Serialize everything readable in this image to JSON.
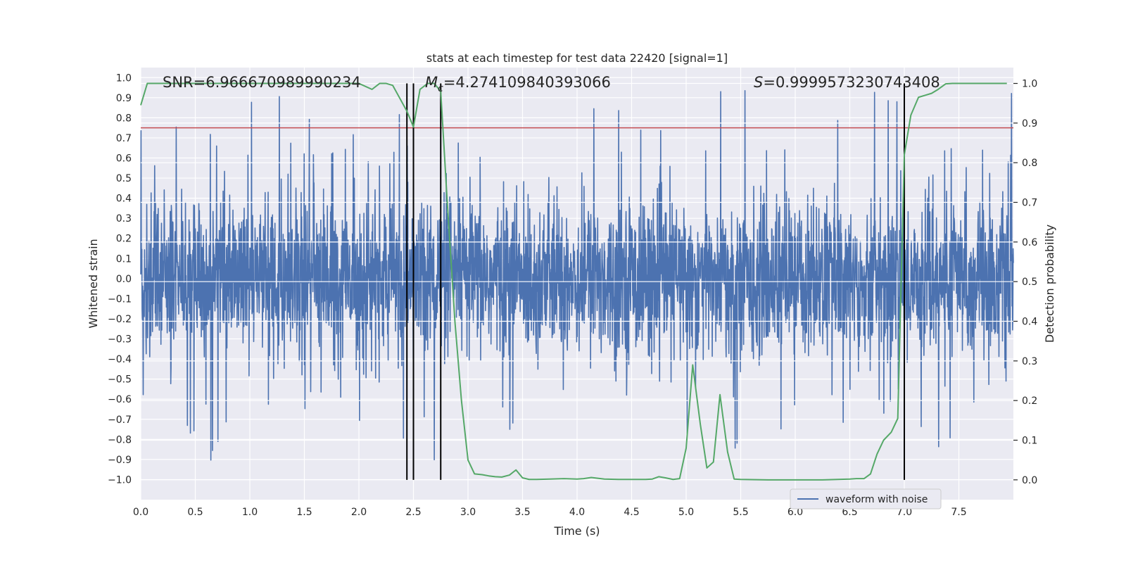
{
  "chart_data": {
    "type": "line",
    "title": "stats at each timestep for test data 22420 [signal=1]",
    "xlabel": "Time (s)",
    "ylabel": "Whitened strain",
    "ylabel_right": "Detection probability",
    "xlim": [
      0.0,
      8.0
    ],
    "ylim": [
      -1.1,
      1.05
    ],
    "ylim_right": [
      -0.05,
      1.04
    ],
    "x_ticks": [
      0.0,
      0.5,
      1.0,
      1.5,
      2.0,
      2.5,
      3.0,
      3.5,
      4.0,
      4.5,
      5.0,
      5.5,
      6.0,
      6.5,
      7.0,
      7.5
    ],
    "x_tick_labels": [
      "0.0",
      "0.5",
      "1.0",
      "1.5",
      "2.0",
      "2.5",
      "3.0",
      "3.5",
      "4.0",
      "4.5",
      "5.0",
      "5.5",
      "6.0",
      "6.5",
      "7.0",
      "7.5"
    ],
    "y_ticks": [
      1.0,
      0.9,
      0.8,
      0.7,
      0.6,
      0.5,
      0.4,
      0.3,
      0.2,
      0.1,
      0.0,
      -0.1,
      -0.2,
      -0.3,
      -0.4,
      -0.5,
      -0.6,
      -0.7,
      -0.8,
      -0.9,
      -1.0
    ],
    "y_tick_labels": [
      "1.0",
      "0.9",
      "0.8",
      "0.7",
      "0.6",
      "0.5",
      "0.4",
      "0.3",
      "0.2",
      "0.1",
      "0.0",
      "−0.1",
      "−0.2",
      "−0.3",
      "−0.4",
      "−0.5",
      "−0.6",
      "−0.7",
      "−0.8",
      "−0.9",
      "−1.0"
    ],
    "y_right_ticks": [
      1.0,
      0.9,
      0.8,
      0.7,
      0.6,
      0.5,
      0.4,
      0.3,
      0.2,
      0.1,
      0.0
    ],
    "y_right_tick_labels": [
      "1.0",
      "0.9",
      "0.8",
      "0.7",
      "0.6",
      "0.5",
      "0.4",
      "0.3",
      "0.2",
      "0.1",
      "0.0"
    ],
    "annotations": {
      "snr": "SNR=6.966670989990234",
      "mc_symbol": "M",
      "mc_subscript": "c",
      "mc_value": "=4.274109840393066",
      "s_symbol": "S",
      "s_value": "=0.9999573230743408"
    },
    "legend": {
      "entries": [
        "waveform with noise"
      ],
      "placement": "lower-right"
    },
    "threshold_line": {
      "y": 0.75,
      "color": "#c44e52"
    },
    "vertical_lines": [
      2.44,
      2.5,
      2.75,
      7.0
    ],
    "waveform": {
      "name": "waveform with noise",
      "color": "#4c72b0",
      "x_range": [
        0.0,
        8.0
      ],
      "sample_count": 3200,
      "typical_amplitude": 0.35,
      "max_amplitude": 0.95
    },
    "detection_probability": {
      "name": "detection probability",
      "color": "#55a868",
      "x": [
        0.0,
        0.06,
        0.13,
        0.25,
        0.5,
        1.0,
        1.5,
        2.0,
        2.12,
        2.19,
        2.25,
        2.31,
        2.38,
        2.44,
        2.5,
        2.56,
        2.63,
        2.69,
        2.75,
        2.81,
        2.88,
        2.94,
        3.0,
        3.06,
        3.13,
        3.19,
        3.25,
        3.31,
        3.38,
        3.44,
        3.5,
        3.56,
        3.63,
        3.75,
        3.88,
        4.0,
        4.06,
        4.13,
        4.19,
        4.25,
        4.38,
        4.5,
        4.63,
        4.69,
        4.75,
        4.81,
        4.88,
        4.94,
        5.0,
        5.06,
        5.13,
        5.19,
        5.25,
        5.31,
        5.38,
        5.44,
        5.5,
        5.75,
        6.0,
        6.25,
        6.5,
        6.56,
        6.63,
        6.69,
        6.75,
        6.81,
        6.88,
        6.94,
        7.0,
        7.06,
        7.13,
        7.19,
        7.25,
        7.31,
        7.38,
        7.44,
        7.5,
        7.75,
        7.94
      ],
      "y": [
        0.945,
        1.0,
        1.0,
        1.0,
        1.0,
        1.0,
        1.0,
        1.0,
        0.985,
        1.0,
        1.0,
        0.995,
        0.96,
        0.93,
        0.89,
        0.985,
        1.0,
        1.0,
        0.98,
        0.7,
        0.4,
        0.2,
        0.05,
        0.015,
        0.013,
        0.01,
        0.008,
        0.007,
        0.012,
        0.025,
        0.005,
        0.001,
        0.001,
        0.002,
        0.003,
        0.002,
        0.003,
        0.006,
        0.004,
        0.002,
        0.001,
        0.001,
        0.001,
        0.002,
        0.008,
        0.005,
        0.001,
        0.003,
        0.08,
        0.29,
        0.14,
        0.03,
        0.045,
        0.215,
        0.07,
        0.002,
        0.001,
        0.0,
        0.0,
        0.0,
        0.002,
        0.003,
        0.003,
        0.015,
        0.065,
        0.1,
        0.12,
        0.155,
        0.82,
        0.92,
        0.965,
        0.97,
        0.975,
        0.985,
        0.999,
        1.0,
        1.0,
        1.0,
        1.0
      ]
    }
  }
}
